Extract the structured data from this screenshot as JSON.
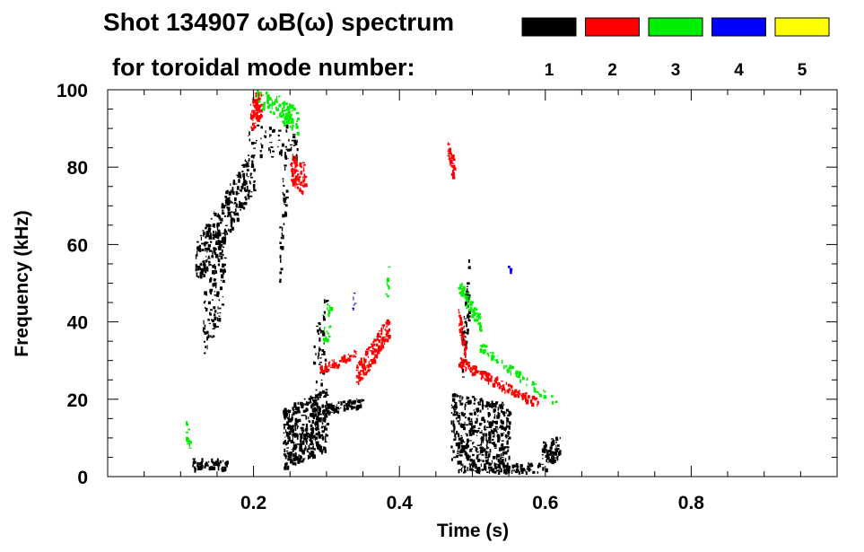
{
  "chart_data": {
    "type": "scatter",
    "title": "Shot 134907 ωB(ω) spectrum",
    "subtitle": "for toroidal mode number:",
    "xlabel": "Time (s)",
    "ylabel": "Frequency (kHz)",
    "xlim": [
      0.0,
      1.0
    ],
    "ylim": [
      0,
      100
    ],
    "x_ticks": [
      0.2,
      0.4,
      0.6,
      0.8
    ],
    "x_tick_labels": [
      "0.2",
      "0.4",
      "0.6",
      "0.8"
    ],
    "y_ticks": [
      0,
      20,
      40,
      60,
      80,
      100
    ],
    "y_tick_labels": [
      "0",
      "20",
      "40",
      "60",
      "80",
      "100"
    ],
    "legend": [
      {
        "label": "1",
        "color": "#000000"
      },
      {
        "label": "2",
        "color": "#ff0000"
      },
      {
        "label": "3",
        "color": "#00ee00"
      },
      {
        "label": "4",
        "color": "#0000ff"
      },
      {
        "label": "5",
        "color": "#ffff00"
      }
    ],
    "series": [
      {
        "name": "n=1",
        "color": "#000000",
        "segments": [
          {
            "t0": 0.115,
            "t1": 0.165,
            "f0": 3.5,
            "f1": 3.5,
            "spread": 1.5,
            "n": 60
          },
          {
            "t0": 0.12,
            "t1": 0.2,
            "f0": 55,
            "f1": 80,
            "spread": 6,
            "n": 320
          },
          {
            "t0": 0.13,
            "t1": 0.16,
            "f0": 38,
            "f1": 55,
            "spread": 10,
            "n": 120
          },
          {
            "t0": 0.19,
            "t1": 0.26,
            "f0": 88,
            "f1": 85,
            "spread": 4,
            "n": 60
          },
          {
            "t0": 0.24,
            "t1": 0.3,
            "f0": 10,
            "f1": 15,
            "spread": 8,
            "n": 420
          },
          {
            "t0": 0.28,
            "t1": 0.35,
            "f0": 17,
            "f1": 19.5,
            "spread": 1.2,
            "n": 110
          },
          {
            "t0": 0.28,
            "t1": 0.3,
            "f0": 28,
            "f1": 38,
            "spread": 10,
            "n": 50
          },
          {
            "t0": 0.47,
            "t1": 0.55,
            "f0": 13,
            "f1": 10,
            "spread": 9,
            "n": 450
          },
          {
            "t0": 0.48,
            "t1": 0.6,
            "f0": 2.5,
            "f1": 2.5,
            "spread": 1.2,
            "n": 110
          },
          {
            "t0": 0.595,
            "t1": 0.62,
            "f0": 6,
            "f1": 8,
            "spread": 3,
            "n": 80
          },
          {
            "t0": 0.485,
            "t1": 0.495,
            "f0": 30,
            "f1": 50,
            "spread": 8,
            "n": 60
          },
          {
            "t0": 0.235,
            "t1": 0.245,
            "f0": 55,
            "f1": 85,
            "spread": 10,
            "n": 40
          }
        ]
      },
      {
        "name": "n=2",
        "color": "#ff0000",
        "segments": [
          {
            "t0": 0.195,
            "t1": 0.21,
            "f0": 93,
            "f1": 98,
            "spread": 4,
            "n": 70
          },
          {
            "t0": 0.25,
            "t1": 0.27,
            "f0": 80,
            "f1": 77,
            "spread": 4,
            "n": 80
          },
          {
            "t0": 0.34,
            "t1": 0.385,
            "f0": 26,
            "f1": 39,
            "spread": 3,
            "n": 150
          },
          {
            "t0": 0.29,
            "t1": 0.34,
            "f0": 28,
            "f1": 32,
            "spread": 1,
            "n": 50
          },
          {
            "t0": 0.465,
            "t1": 0.475,
            "f0": 86,
            "f1": 78,
            "spread": 3,
            "n": 40
          },
          {
            "t0": 0.48,
            "t1": 0.59,
            "f0": 30,
            "f1": 19,
            "spread": 1.2,
            "n": 160
          },
          {
            "t0": 0.48,
            "t1": 0.49,
            "f0": 42,
            "f1": 32,
            "spread": 3,
            "n": 40
          }
        ]
      },
      {
        "name": "n=3",
        "color": "#00ee00",
        "segments": [
          {
            "t0": 0.2,
            "t1": 0.26,
            "f0": 100,
            "f1": 92,
            "spread": 3,
            "n": 120
          },
          {
            "t0": 0.295,
            "t1": 0.305,
            "f0": 38,
            "f1": 42,
            "spread": 5,
            "n": 25
          },
          {
            "t0": 0.38,
            "t1": 0.385,
            "f0": 46,
            "f1": 52,
            "spread": 3,
            "n": 10
          },
          {
            "t0": 0.48,
            "t1": 0.51,
            "f0": 50,
            "f1": 40,
            "spread": 2,
            "n": 70
          },
          {
            "t0": 0.51,
            "t1": 0.615,
            "f0": 34,
            "f1": 19,
            "spread": 1,
            "n": 60
          },
          {
            "t0": 0.105,
            "t1": 0.112,
            "f0": 12,
            "f1": 10,
            "spread": 3,
            "n": 15
          }
        ]
      },
      {
        "name": "n=4",
        "color": "#0000ff",
        "segments": [
          {
            "t0": 0.335,
            "t1": 0.338,
            "f0": 44,
            "f1": 47,
            "spread": 2,
            "n": 6
          },
          {
            "t0": 0.548,
            "t1": 0.552,
            "f0": 54,
            "f1": 54,
            "spread": 0.5,
            "n": 3
          }
        ]
      },
      {
        "name": "n=5",
        "color": "#ffff00",
        "segments": []
      }
    ]
  }
}
